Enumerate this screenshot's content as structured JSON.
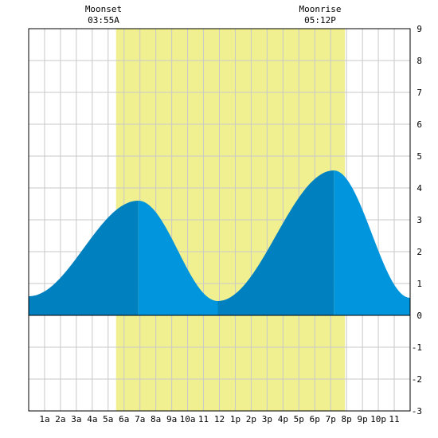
{
  "moon": {
    "moonset_label": "Moonset",
    "moonset_time": "03:55A",
    "moonrise_label": "Moonrise",
    "moonrise_time": "05:12P"
  },
  "chart_data": {
    "type": "area",
    "title": "",
    "xlabel": "",
    "ylabel": "",
    "xlim": [
      0,
      24
    ],
    "ylim": [
      -3,
      9
    ],
    "grid": true,
    "x_ticks": [
      {
        "x": 1,
        "label": "1a"
      },
      {
        "x": 2,
        "label": "2a"
      },
      {
        "x": 3,
        "label": "3a"
      },
      {
        "x": 4,
        "label": "4a"
      },
      {
        "x": 5,
        "label": "5a"
      },
      {
        "x": 6,
        "label": "6a"
      },
      {
        "x": 7,
        "label": "7a"
      },
      {
        "x": 8,
        "label": "8a"
      },
      {
        "x": 9,
        "label": "9a"
      },
      {
        "x": 10,
        "label": "10a"
      },
      {
        "x": 11,
        "label": "11"
      },
      {
        "x": 12,
        "label": "12"
      },
      {
        "x": 13,
        "label": "1p"
      },
      {
        "x": 14,
        "label": "2p"
      },
      {
        "x": 15,
        "label": "3p"
      },
      {
        "x": 16,
        "label": "4p"
      },
      {
        "x": 17,
        "label": "5p"
      },
      {
        "x": 18,
        "label": "6p"
      },
      {
        "x": 19,
        "label": "7p"
      },
      {
        "x": 20,
        "label": "8p"
      },
      {
        "x": 21,
        "label": "9p"
      },
      {
        "x": 22,
        "label": "10p"
      },
      {
        "x": 23,
        "label": "11"
      }
    ],
    "y_ticks": [
      -3,
      -2,
      -1,
      0,
      1,
      2,
      3,
      4,
      5,
      6,
      7,
      8,
      9
    ],
    "daylight": {
      "start": 5.5,
      "end": 19.9
    },
    "tide_extremes": [
      {
        "time": 0.0,
        "height": 0.6
      },
      {
        "time": 6.9,
        "height": 3.6
      },
      {
        "time": 11.9,
        "height": 0.45
      },
      {
        "time": 19.2,
        "height": 4.55
      },
      {
        "time": 24.0,
        "height": 0.55
      }
    ],
    "shade_breaks": [
      6.9,
      11.9,
      19.2
    ],
    "colors": {
      "daylight": "#f0f090",
      "tide_dark": "#0080bf",
      "tide_light": "#0095dd",
      "grid": "#c8c8c8",
      "frame": "#000000"
    }
  }
}
